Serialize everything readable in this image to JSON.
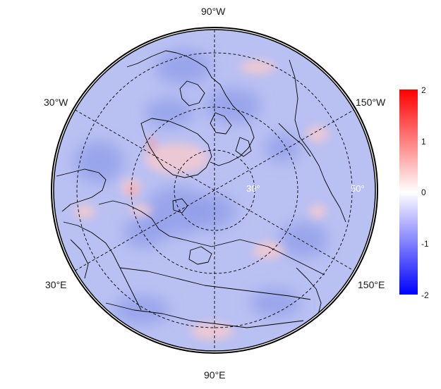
{
  "map": {
    "projection": "north polar stereographic",
    "lon_labels": {
      "top": "90°W",
      "upper_left": "30°W",
      "upper_right": "150°W",
      "lower_left": "30°E",
      "lower_right": "150°E",
      "bottom": "90°E"
    },
    "lat_labels": [
      "30°",
      "50°"
    ],
    "field_colors": {
      "low": "#0000ff",
      "mid": "#ffffff",
      "high": "#ff0000",
      "background_tint": "#b9c0f2",
      "dark_tint": "#8f9ce8",
      "warm_tint": "#f4c9cf",
      "hot_tint": "#f2a3ae"
    }
  },
  "colorbar": {
    "ticks": [
      "2",
      "1",
      "0",
      "-1",
      "-2"
    ],
    "min": -2,
    "max": 2,
    "colors": {
      "low": "#0000ff",
      "mid": "#ffffff",
      "high": "#ff0000"
    }
  }
}
